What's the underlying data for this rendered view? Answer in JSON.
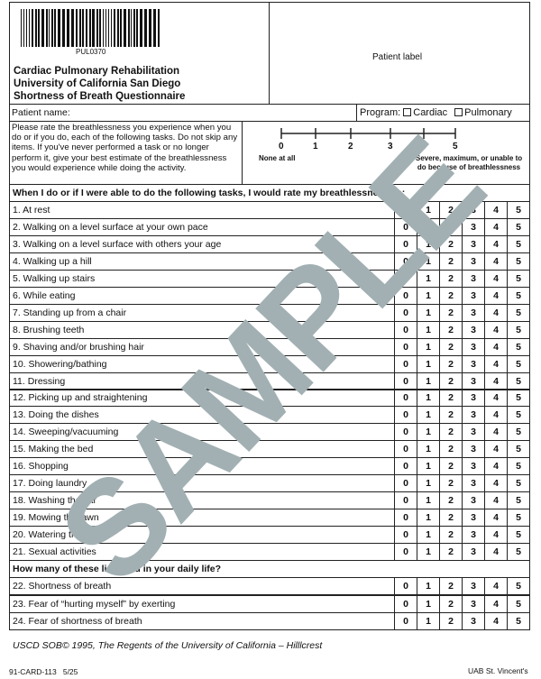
{
  "header": {
    "barcode_text": "PUL0370",
    "title_lines": [
      "Cardiac Pulmonary Rehabilitation",
      "University of California San Diego",
      "Shortness of Breath Questionnaire"
    ],
    "patient_label": "Patient label"
  },
  "patient_name_label": "Patient name:",
  "program": {
    "label": "Program:",
    "options": [
      "Cardiac",
      "Pulmonary"
    ]
  },
  "instructions": "Please rate the breathlessness you experience when you do or if you do, each of the following tasks. Do not skip any items. If you've never performed a task or no longer perform it, give your best estimate of the breathlessness you would experience while doing the activity.",
  "scale": {
    "ticks": [
      "0",
      "1",
      "2",
      "3",
      "4",
      "5"
    ],
    "low_label": "None at all",
    "high_label": "Severe, maximum, or unable to do because of breathlessness"
  },
  "section1_header": "When I do or if I were able to do the following tasks, I would rate my breathlessness as:",
  "section1_items": [
    "1.  At rest",
    "2. Walking on a level surface at  your own pace",
    "3. Walking on a level surface with others your age",
    "4. Walking up a hill",
    "5. Walking up stairs",
    "6. While eating",
    "7. Standing up from a chair",
    "8. Brushing teeth",
    "9. Shaving and/or brushing hair",
    "10. Showering/bathing",
    "11. Dressing",
    "12. Picking up and straightening",
    "13. Doing the dishes",
    "14. Sweeping/vacuuming",
    "15. Making the bed",
    "16. Shopping",
    "17. Doing laundry",
    "18. Washing the car",
    "19. Mowing the lawn",
    "20. Watering the lawn",
    "21. Sexual activities"
  ],
  "section2_header": "How many of these limit you in your daily life?",
  "section2_items": [
    "22. Shortness of breath",
    "23. Fear of “hurting myself” by exerting",
    "24. Fear of shortness of breath"
  ],
  "rating_options": [
    "0",
    "1",
    "2",
    "3",
    "4",
    "5"
  ],
  "footer": {
    "copyright": "USCD SOB© 1995, The Regents of the University of California – Hilllcrest",
    "form_code": "91-CARD-113   5/25",
    "institution": "UAB St. Vincent's"
  },
  "watermark": "SAMPLE",
  "colors": {
    "watermark": "#a2b0b3",
    "lines": "#222222"
  }
}
